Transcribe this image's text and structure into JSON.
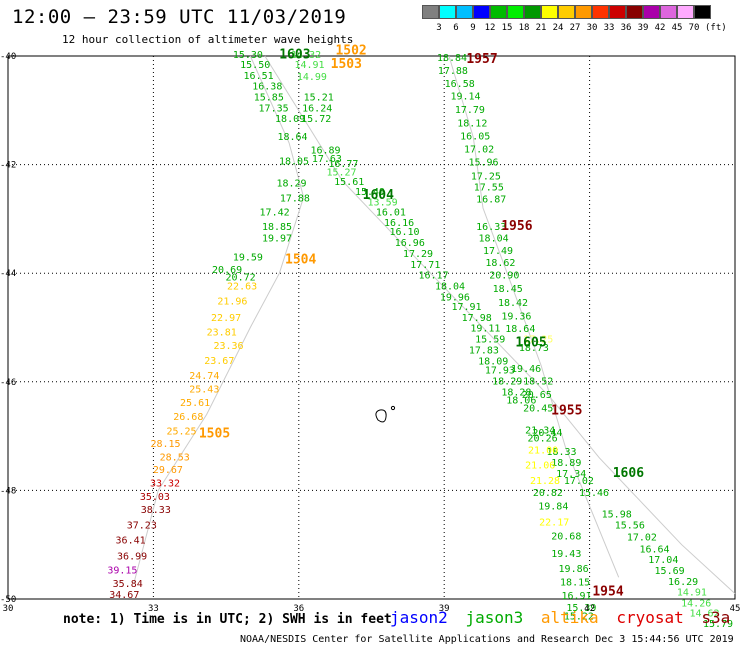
{
  "header": {
    "title": "12:00 – 23:59 UTC 11/03/2019",
    "subtitle": "12 hour collection of altimeter wave heights"
  },
  "color_scale": {
    "unit": "(ft)",
    "bins": [
      {
        "color": "#808080"
      },
      {
        "color": "#00ffff"
      },
      {
        "color": "#00bfff"
      },
      {
        "color": "#0000ff"
      },
      {
        "color": "#00bb00"
      },
      {
        "color": "#00ee00"
      },
      {
        "color": "#009900"
      },
      {
        "color": "#ffff00"
      },
      {
        "color": "#ffcc00"
      },
      {
        "color": "#ff9900"
      },
      {
        "color": "#ff3300"
      },
      {
        "color": "#cc0000"
      },
      {
        "color": "#880000"
      },
      {
        "color": "#aa00aa"
      },
      {
        "color": "#dd66dd"
      },
      {
        "color": "#ffaaff"
      },
      {
        "color": "#000000"
      }
    ],
    "ticks": [
      "3",
      "6",
      "9",
      "12",
      "15",
      "18",
      "21",
      "24",
      "27",
      "30",
      "33",
      "36",
      "39",
      "42",
      "45",
      "70"
    ]
  },
  "axes": {
    "x_ticks": [
      "30",
      "33",
      "36",
      "39",
      "42",
      "45"
    ],
    "y_ticks": [
      "-40",
      "-42",
      "-44",
      "-46",
      "-48",
      "-50"
    ]
  },
  "satellites": {
    "jason2": {
      "label": "jason2",
      "color": "#0000ff"
    },
    "jason3": {
      "label": "jason3",
      "color": "#00aa00"
    },
    "altika": {
      "label": "altika",
      "color": "#ff9900"
    },
    "cryosat": {
      "label": "cryosat",
      "color": "#dd0000"
    },
    "s3a": {
      "label": "s3a",
      "color": "#8b0000"
    }
  },
  "tracks": [
    {
      "id": "A",
      "path": [
        [
          35.0,
          -40.0
        ],
        [
          35.8,
          -41.6
        ],
        [
          36.1,
          -42.6
        ],
        [
          35.6,
          -44.0
        ],
        [
          35.0,
          -45.0
        ],
        [
          34.1,
          -46.6
        ],
        [
          33.1,
          -48.0
        ],
        [
          32.6,
          -49.7
        ]
      ]
    },
    {
      "id": "B",
      "path": [
        [
          35.3,
          -40.0
        ],
        [
          36.9,
          -42.3
        ],
        [
          38.5,
          -43.8
        ],
        [
          39.8,
          -45.0
        ],
        [
          41.2,
          -46.3
        ],
        [
          42.2,
          -47.4
        ],
        [
          43.9,
          -49.0
        ],
        [
          45.0,
          -49.9
        ]
      ]
    },
    {
      "id": "C",
      "path": [
        [
          39.1,
          -40.0
        ],
        [
          39.6,
          -41.5
        ],
        [
          39.8,
          -42.8
        ],
        [
          40.3,
          -44.0
        ],
        [
          41.0,
          -45.7
        ],
        [
          41.5,
          -47.2
        ],
        [
          42.6,
          -49.6
        ]
      ]
    }
  ],
  "pass_labels": [
    {
      "text": "1603",
      "lat": -40.05,
      "lon": 35.92,
      "color": "#007700"
    },
    {
      "text": "1502",
      "lat": -39.97,
      "lon": 37.08,
      "color": "#ff9900"
    },
    {
      "text": "1503",
      "lat": -40.22,
      "lon": 36.98,
      "color": "#ff9900"
    },
    {
      "text": "1957",
      "lat": -40.13,
      "lon": 39.78,
      "color": "#8b0000"
    },
    {
      "text": "1604",
      "lat": -42.63,
      "lon": 37.64,
      "color": "#007700"
    },
    {
      "text": "1956",
      "lat": -43.2,
      "lon": 40.5,
      "color": "#8b0000"
    },
    {
      "text": "1504",
      "lat": -43.82,
      "lon": 36.04,
      "color": "#ff9900"
    },
    {
      "text": "1605",
      "lat": -45.35,
      "lon": 40.79,
      "color": "#007700"
    },
    {
      "text": "1955",
      "lat": -46.6,
      "lon": 41.53,
      "color": "#8b0000"
    },
    {
      "text": "1505",
      "lat": -47.03,
      "lon": 34.26,
      "color": "#ff9900"
    },
    {
      "text": "1606",
      "lat": -47.75,
      "lon": 42.8,
      "color": "#007700"
    },
    {
      "text": "1954",
      "lat": -49.94,
      "lon": 42.38,
      "color": "#8b0000"
    }
  ],
  "values": [
    {
      "t": "15.30",
      "lat": -40.04,
      "lon": 34.95,
      "c": "#00aa00"
    },
    {
      "t": "14.32",
      "lat": -40.04,
      "lon": 36.15,
      "c": "#44dd44"
    },
    {
      "t": "15.50",
      "lat": -40.22,
      "lon": 35.1,
      "c": "#00aa00"
    },
    {
      "t": "14.91",
      "lat": -40.22,
      "lon": 36.22,
      "c": "#44dd44"
    },
    {
      "t": "16.51",
      "lat": -40.42,
      "lon": 35.17,
      "c": "#00aa00"
    },
    {
      "t": "14.99",
      "lat": -40.44,
      "lon": 36.27,
      "c": "#44dd44"
    },
    {
      "t": "16.38",
      "lat": -40.62,
      "lon": 35.35,
      "c": "#00aa00"
    },
    {
      "t": "15.85",
      "lat": -40.82,
      "lon": 35.38,
      "c": "#00aa00"
    },
    {
      "t": "15.21",
      "lat": -40.82,
      "lon": 36.41,
      "c": "#00aa00"
    },
    {
      "t": "17.35",
      "lat": -41.02,
      "lon": 35.48,
      "c": "#00aa00"
    },
    {
      "t": "16.24",
      "lat": -41.02,
      "lon": 36.38,
      "c": "#00aa00"
    },
    {
      "t": "18.09",
      "lat": -41.22,
      "lon": 35.82,
      "c": "#00aa00"
    },
    {
      "t": "15.72",
      "lat": -41.22,
      "lon": 36.36,
      "c": "#00aa00"
    },
    {
      "t": "18.64",
      "lat": -41.55,
      "lon": 35.87,
      "c": "#00aa00"
    },
    {
      "t": "16.89",
      "lat": -41.8,
      "lon": 36.55,
      "c": "#00aa00"
    },
    {
      "t": "18.05",
      "lat": -42.0,
      "lon": 35.9,
      "c": "#00aa00"
    },
    {
      "t": "17.63",
      "lat": -41.95,
      "lon": 36.58,
      "c": "#00aa00"
    },
    {
      "t": "16.77",
      "lat": -42.04,
      "lon": 36.92,
      "c": "#00aa00"
    },
    {
      "t": "15.27",
      "lat": -42.2,
      "lon": 36.88,
      "c": "#44dd44"
    },
    {
      "t": "15.61",
      "lat": -42.38,
      "lon": 37.04,
      "c": "#00aa00"
    },
    {
      "t": "18.29",
      "lat": -42.4,
      "lon": 35.85,
      "c": "#00aa00"
    },
    {
      "t": "15.49",
      "lat": -42.56,
      "lon": 37.47,
      "c": "#00aa00"
    },
    {
      "t": "17.88",
      "lat": -42.68,
      "lon": 35.92,
      "c": "#00aa00"
    },
    {
      "t": "13.59",
      "lat": -42.75,
      "lon": 37.73,
      "c": "#44dd44"
    },
    {
      "t": "16.01",
      "lat": -42.94,
      "lon": 37.9,
      "c": "#00aa00"
    },
    {
      "t": "17.42",
      "lat": -42.94,
      "lon": 35.5,
      "c": "#00aa00"
    },
    {
      "t": "16.16",
      "lat": -43.13,
      "lon": 38.07,
      "c": "#00aa00"
    },
    {
      "t": "18.85",
      "lat": -43.2,
      "lon": 35.55,
      "c": "#00aa00"
    },
    {
      "t": "16.10",
      "lat": -43.3,
      "lon": 38.18,
      "c": "#00aa00"
    },
    {
      "t": "19.97",
      "lat": -43.42,
      "lon": 35.55,
      "c": "#00aa00"
    },
    {
      "t": "16.96",
      "lat": -43.5,
      "lon": 38.29,
      "c": "#00aa00"
    },
    {
      "t": "19.59",
      "lat": -43.77,
      "lon": 34.95,
      "c": "#00aa00"
    },
    {
      "t": "17.29",
      "lat": -43.7,
      "lon": 38.46,
      "c": "#00aa00"
    },
    {
      "t": "17.71",
      "lat": -43.9,
      "lon": 38.61,
      "c": "#00aa00"
    },
    {
      "t": "20.69",
      "lat": -44.0,
      "lon": 34.52,
      "c": "#00aa00"
    },
    {
      "t": "16.17",
      "lat": -44.1,
      "lon": 38.78,
      "c": "#00aa00"
    },
    {
      "t": "20.72",
      "lat": -44.13,
      "lon": 34.8,
      "c": "#00aa00"
    },
    {
      "t": "18.04",
      "lat": -44.3,
      "lon": 39.12,
      "c": "#00aa00"
    },
    {
      "t": "22.63",
      "lat": -44.3,
      "lon": 34.83,
      "c": "#ffcc00"
    },
    {
      "t": "19.96",
      "lat": -44.5,
      "lon": 39.22,
      "c": "#00aa00"
    },
    {
      "t": "21.96",
      "lat": -44.58,
      "lon": 34.63,
      "c": "#ffcc00"
    },
    {
      "t": "17.91",
      "lat": -44.68,
      "lon": 39.46,
      "c": "#00aa00"
    },
    {
      "t": "22.97",
      "lat": -44.88,
      "lon": 34.5,
      "c": "#ffcc00"
    },
    {
      "t": "17.98",
      "lat": -44.88,
      "lon": 39.67,
      "c": "#00aa00"
    },
    {
      "t": "19.11",
      "lat": -45.07,
      "lon": 39.85,
      "c": "#00aa00"
    },
    {
      "t": "23.81",
      "lat": -45.15,
      "lon": 34.41,
      "c": "#ffcc00"
    },
    {
      "t": "15.59",
      "lat": -45.28,
      "lon": 39.95,
      "c": "#00aa00"
    },
    {
      "t": "23.36",
      "lat": -45.4,
      "lon": 34.55,
      "c": "#ffcc00"
    },
    {
      "t": "17.83",
      "lat": -45.48,
      "lon": 39.82,
      "c": "#00aa00"
    },
    {
      "t": "23.67",
      "lat": -45.67,
      "lon": 34.36,
      "c": "#ffcc00"
    },
    {
      "t": "18.09",
      "lat": -45.68,
      "lon": 40.01,
      "c": "#00aa00"
    },
    {
      "t": "17.93",
      "lat": -45.85,
      "lon": 40.15,
      "c": "#00aa00"
    },
    {
      "t": "24.74",
      "lat": -45.95,
      "lon": 34.05,
      "c": "#ffaa00"
    },
    {
      "t": "18.29",
      "lat": -46.05,
      "lon": 40.3,
      "c": "#00aa00"
    },
    {
      "t": "18.52",
      "lat": -46.05,
      "lon": 40.94,
      "c": "#00aa00"
    },
    {
      "t": "18.28",
      "lat": -46.25,
      "lon": 40.49,
      "c": "#00aa00"
    },
    {
      "t": "25.43",
      "lat": -46.2,
      "lon": 34.05,
      "c": "#ffaa00"
    },
    {
      "t": "18.06",
      "lat": -46.4,
      "lon": 40.59,
      "c": "#00aa00"
    },
    {
      "t": "25.61",
      "lat": -46.45,
      "lon": 33.86,
      "c": "#ffaa00"
    },
    {
      "t": "26.68",
      "lat": -46.7,
      "lon": 33.72,
      "c": "#ffaa00"
    },
    {
      "t": "25.25",
      "lat": -46.97,
      "lon": 33.58,
      "c": "#ffaa00"
    },
    {
      "t": "28.15",
      "lat": -47.2,
      "lon": 33.25,
      "c": "#ff9900"
    },
    {
      "t": "28.53",
      "lat": -47.45,
      "lon": 33.44,
      "c": "#ff9900"
    },
    {
      "t": "29.67",
      "lat": -47.68,
      "lon": 33.3,
      "c": "#ff9900"
    },
    {
      "t": "33.32",
      "lat": -47.93,
      "lon": 33.24,
      "c": "#cc0000"
    },
    {
      "t": "35.03",
      "lat": -48.18,
      "lon": 33.03,
      "c": "#aa0000"
    },
    {
      "t": "38.33",
      "lat": -48.42,
      "lon": 33.05,
      "c": "#880000"
    },
    {
      "t": "37.23",
      "lat": -48.7,
      "lon": 32.76,
      "c": "#880000"
    },
    {
      "t": "36.41",
      "lat": -48.98,
      "lon": 32.53,
      "c": "#880000"
    },
    {
      "t": "36.99",
      "lat": -49.27,
      "lon": 32.56,
      "c": "#880000"
    },
    {
      "t": "39.15",
      "lat": -49.53,
      "lon": 32.36,
      "c": "#aa00aa"
    },
    {
      "t": "35.84",
      "lat": -49.78,
      "lon": 32.47,
      "c": "#880000"
    },
    {
      "t": "34.67",
      "lat": -49.98,
      "lon": 32.4,
      "c": "#880000"
    },
    {
      "t": "18.84",
      "lat": -40.09,
      "lon": 39.16,
      "c": "#00aa00"
    },
    {
      "t": "17.88",
      "lat": -40.33,
      "lon": 39.18,
      "c": "#00aa00"
    },
    {
      "t": "16.58",
      "lat": -40.57,
      "lon": 39.32,
      "c": "#00aa00"
    },
    {
      "t": "19.14",
      "lat": -40.8,
      "lon": 39.44,
      "c": "#00aa00"
    },
    {
      "t": "17.79",
      "lat": -41.05,
      "lon": 39.53,
      "c": "#00aa00"
    },
    {
      "t": "18.12",
      "lat": -41.3,
      "lon": 39.58,
      "c": "#00aa00"
    },
    {
      "t": "16.05",
      "lat": -41.54,
      "lon": 39.64,
      "c": "#00aa00"
    },
    {
      "t": "17.02",
      "lat": -41.78,
      "lon": 39.72,
      "c": "#00aa00"
    },
    {
      "t": "15.96",
      "lat": -42.02,
      "lon": 39.81,
      "c": "#00aa00"
    },
    {
      "t": "17.25",
      "lat": -42.27,
      "lon": 39.86,
      "c": "#00aa00"
    },
    {
      "t": "17.55",
      "lat": -42.48,
      "lon": 39.92,
      "c": "#00aa00"
    },
    {
      "t": "16.87",
      "lat": -42.7,
      "lon": 39.97,
      "c": "#00aa00"
    },
    {
      "t": "16.33",
      "lat": -43.2,
      "lon": 39.97,
      "c": "#00aa00"
    },
    {
      "t": "18.04",
      "lat": -43.42,
      "lon": 40.02,
      "c": "#00aa00"
    },
    {
      "t": "17.49",
      "lat": -43.65,
      "lon": 40.11,
      "c": "#00aa00"
    },
    {
      "t": "18.62",
      "lat": -43.87,
      "lon": 40.16,
      "c": "#00aa00"
    },
    {
      "t": "20.90",
      "lat": -44.1,
      "lon": 40.24,
      "c": "#00aa00"
    },
    {
      "t": "18.45",
      "lat": -44.35,
      "lon": 40.31,
      "c": "#00aa00"
    },
    {
      "t": "18.42",
      "lat": -44.6,
      "lon": 40.42,
      "c": "#00aa00"
    },
    {
      "t": "19.36",
      "lat": -44.85,
      "lon": 40.49,
      "c": "#00aa00"
    },
    {
      "t": "18.64",
      "lat": -45.08,
      "lon": 40.57,
      "c": "#00aa00"
    },
    {
      "t": "19.46",
      "lat": -45.82,
      "lon": 40.69,
      "c": "#00aa00"
    },
    {
      "t": "20.65",
      "lat": -46.3,
      "lon": 40.91,
      "c": "#00aa00"
    },
    {
      "t": "20.45",
      "lat": -46.55,
      "lon": 40.94,
      "c": "#00aa00"
    },
    {
      "t": "21.34",
      "lat": -46.95,
      "lon": 40.98,
      "c": "#00aa00"
    },
    {
      "t": "20.26",
      "lat": -47.1,
      "lon": 41.03,
      "c": "#00aa00"
    },
    {
      "t": "18.33",
      "lat": -47.35,
      "lon": 41.42,
      "c": "#00aa00"
    },
    {
      "t": "18.89",
      "lat": -47.55,
      "lon": 41.52,
      "c": "#00aa00"
    },
    {
      "t": "17.34",
      "lat": -47.75,
      "lon": 41.62,
      "c": "#00aa00"
    },
    {
      "t": "17.02",
      "lat": -47.88,
      "lon": 41.78,
      "c": "#00aa00"
    },
    {
      "t": "20.82",
      "lat": -48.1,
      "lon": 41.14,
      "c": "#00aa00"
    },
    {
      "t": "15.46",
      "lat": -48.1,
      "lon": 42.09,
      "c": "#00aa00"
    },
    {
      "t": "19.84",
      "lat": -48.35,
      "lon": 41.25,
      "c": "#00aa00"
    },
    {
      "t": "15.98",
      "lat": -48.5,
      "lon": 42.56,
      "c": "#00aa00"
    },
    {
      "t": "15.56",
      "lat": -48.7,
      "lon": 42.83,
      "c": "#00aa00"
    },
    {
      "t": "20.68",
      "lat": -48.9,
      "lon": 41.52,
      "c": "#00aa00"
    },
    {
      "t": "17.02",
      "lat": -48.92,
      "lon": 43.08,
      "c": "#00aa00"
    },
    {
      "t": "16.64",
      "lat": -49.14,
      "lon": 43.34,
      "c": "#00aa00"
    },
    {
      "t": "19.43",
      "lat": -49.23,
      "lon": 41.52,
      "c": "#00aa00"
    },
    {
      "t": "17.04",
      "lat": -49.34,
      "lon": 43.52,
      "c": "#00aa00"
    },
    {
      "t": "19.86",
      "lat": -49.5,
      "lon": 41.67,
      "c": "#00aa00"
    },
    {
      "t": "15.69",
      "lat": -49.54,
      "lon": 43.65,
      "c": "#00aa00"
    },
    {
      "t": "18.15",
      "lat": -49.75,
      "lon": 41.7,
      "c": "#00aa00"
    },
    {
      "t": "16.29",
      "lat": -49.74,
      "lon": 43.93,
      "c": "#00aa00"
    },
    {
      "t": "16.91",
      "lat": -50.0,
      "lon": 41.73,
      "c": "#00aa00"
    },
    {
      "t": "14.91",
      "lat": -49.94,
      "lon": 44.11,
      "c": "#44dd44"
    },
    {
      "t": "14.26",
      "lat": -50.14,
      "lon": 44.2,
      "c": "#44dd44"
    },
    {
      "t": "15.39",
      "lat": -50.22,
      "lon": 41.83,
      "c": "#00aa00"
    },
    {
      "t": "14.62",
      "lat": -50.32,
      "lon": 44.37,
      "c": "#44dd44"
    },
    {
      "t": "15.22",
      "lat": -50.38,
      "lon": 41.78,
      "c": "#00aa00"
    },
    {
      "t": "15.79",
      "lat": -50.52,
      "lon": 44.65,
      "c": "#00aa00"
    },
    {
      "t": "17.25",
      "lat": -45.28,
      "lon": 40.94,
      "c": "#ffff66"
    },
    {
      "t": "18.73",
      "lat": -45.43,
      "lon": 40.85,
      "c": "#00aa00"
    },
    {
      "t": "20.44",
      "lat": -47.0,
      "lon": 41.13,
      "c": "#00aa00"
    },
    {
      "t": "21.00",
      "lat": -47.32,
      "lon": 41.04,
      "c": "#ffff00"
    },
    {
      "t": "21.06",
      "lat": -47.6,
      "lon": 40.98,
      "c": "#ffff00"
    },
    {
      "t": "21.28",
      "lat": -47.88,
      "lon": 41.08,
      "c": "#ffff00"
    },
    {
      "t": "22.17",
      "lat": -48.65,
      "lon": 41.27,
      "c": "#ffff00"
    }
  ],
  "footer": {
    "note": "note:  1) Time is in UTC; 2) SWH is in feet",
    "credit": "NOAA/NESDIS Center for Satellite Applications and Research     Dec  3 15:44:56 UTC 2019"
  }
}
